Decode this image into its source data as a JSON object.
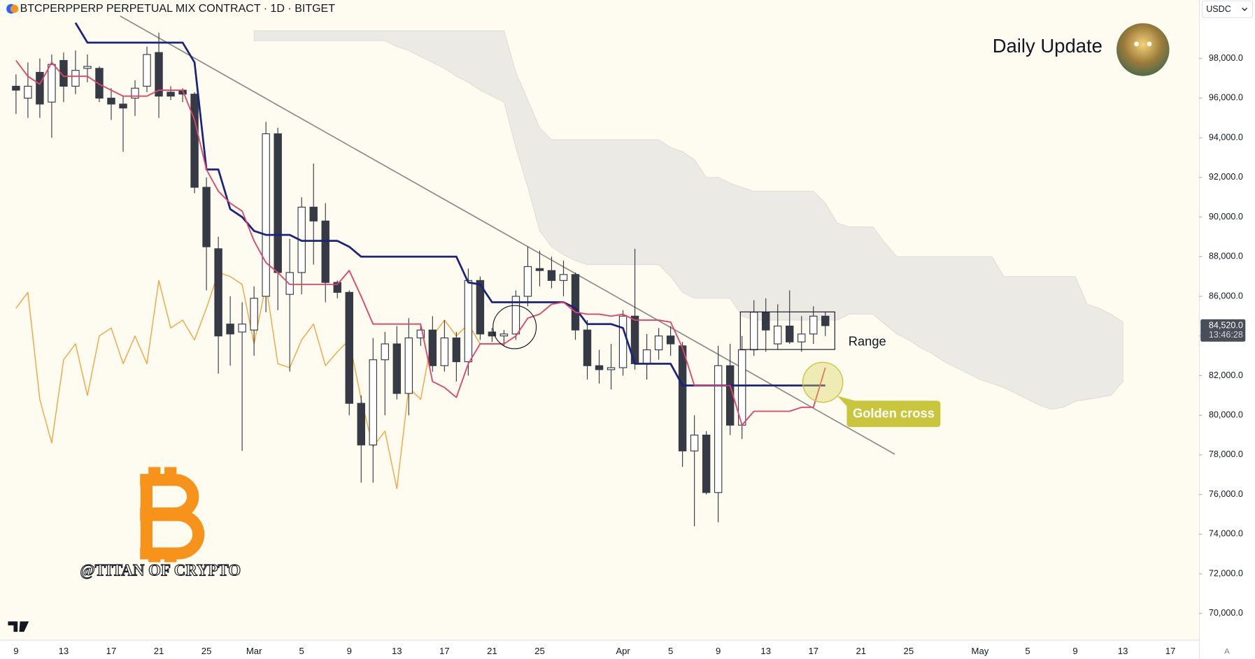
{
  "chart_data": {
    "type": "candlestick",
    "title": "BTCPERPPERP PERPETUAL MIX CONTRACT · 1D · BITGET",
    "currency": "USDC",
    "auto_button": "A",
    "annotations": {
      "daily_update": "Daily Update",
      "range": "Range",
      "golden_cross": "Golden cross",
      "watermark": "@TITAN OF CRYPTO"
    },
    "last_price": {
      "value": 84520,
      "label": "84,520.0",
      "countdown": "13:46:28"
    },
    "up_color": "#ffffff",
    "down_color": "#363a45",
    "ylim": [
      68670,
      100950
    ],
    "yticks": [
      {
        "value": 70000,
        "label": "70,000.0"
      },
      {
        "value": 72000,
        "label": "72,000.0"
      },
      {
        "value": 74000,
        "label": "74,000.0"
      },
      {
        "value": 76000,
        "label": "76,000.0"
      },
      {
        "value": 78000,
        "label": "78,000.0"
      },
      {
        "value": 80000,
        "label": "80,000.0"
      },
      {
        "value": 82000,
        "label": "82,000.0"
      },
      {
        "value": 84000,
        "label": "84,000.0"
      },
      {
        "value": 86000,
        "label": "86,000.0"
      },
      {
        "value": 88000,
        "label": "88,000.0"
      },
      {
        "value": 90000,
        "label": "90,000.0"
      },
      {
        "value": 92000,
        "label": "92,000.0"
      },
      {
        "value": 94000,
        "label": "94,000.0"
      },
      {
        "value": 96000,
        "label": "96,000.0"
      },
      {
        "value": 98000,
        "label": "98,000.0"
      }
    ],
    "categories": [
      "9",
      null,
      null,
      null,
      "13",
      null,
      null,
      null,
      "17",
      null,
      null,
      null,
      "21",
      null,
      null,
      null,
      "25",
      null,
      null,
      null,
      "Mar",
      null,
      null,
      null,
      "5",
      null,
      null,
      null,
      "9",
      null,
      null,
      null,
      "13",
      null,
      null,
      null,
      "17",
      null,
      null,
      null,
      "21",
      null,
      null,
      null,
      "25",
      null,
      null,
      null,
      null,
      null,
      null,
      "Apr",
      null,
      null,
      null,
      "5",
      null,
      null,
      null,
      "9",
      null,
      null,
      null,
      "13",
      null,
      null,
      null,
      "17",
      null,
      null,
      null,
      "21",
      null,
      null,
      null,
      "25",
      null,
      null,
      null,
      null,
      null,
      "May",
      null,
      null,
      null,
      "5",
      null,
      null,
      null,
      "9",
      null,
      null,
      null,
      "13",
      null,
      null,
      null,
      "17",
      null,
      null
    ],
    "open": [
      96600,
      96000,
      97300,
      95800,
      97900,
      96600,
      97500,
      97500,
      96000,
      95700,
      96000,
      96600,
      98300,
      96300,
      96400,
      96200,
      91500,
      88400,
      84600,
      84200,
      84300,
      86000,
      94200,
      86100,
      87200,
      90500,
      89800,
      86700,
      86200,
      80600,
      78500,
      82800,
      83600,
      81100,
      83900,
      84300,
      82500,
      83900,
      82700,
      86800,
      84200,
      84000,
      84100,
      86000,
      87400,
      87300,
      86800,
      87100,
      84300,
      82500,
      82300,
      82400,
      85000,
      82600,
      83300,
      84000,
      83500,
      78200,
      79000,
      76100,
      82500,
      79500,
      83300,
      85200,
      83600,
      84500,
      83700,
      84100,
      85000,
      null,
      null,
      null,
      null,
      null,
      null,
      null,
      null,
      null,
      null,
      null,
      null,
      null,
      null,
      null,
      null,
      null,
      null,
      null,
      null,
      null,
      null,
      null,
      null,
      null,
      null,
      null,
      null,
      null,
      null,
      null
    ],
    "high": [
      97200,
      97800,
      98000,
      98200,
      98300,
      98400,
      98200,
      97600,
      96500,
      96100,
      96900,
      98600,
      99300,
      96600,
      96500,
      96300,
      92000,
      89000,
      86000,
      85700,
      86500,
      94800,
      94500,
      88900,
      91000,
      92700,
      90700,
      86800,
      86300,
      81000,
      83900,
      84200,
      84500,
      84900,
      84600,
      85000,
      84800,
      84200,
      87400,
      87000,
      84400,
      84300,
      86300,
      88500,
      88300,
      88000,
      87800,
      87200,
      84800,
      83300,
      83600,
      85300,
      88400,
      84100,
      84400,
      84500,
      83700,
      80000,
      79200,
      83500,
      83600,
      84000,
      85800,
      85900,
      85600,
      86300,
      85000,
      85500,
      85200,
      null,
      null,
      null,
      null,
      null,
      null,
      null,
      null,
      null,
      null,
      null,
      null,
      null,
      null,
      null,
      null,
      null,
      null,
      null,
      null,
      null,
      null,
      null,
      null,
      null,
      null,
      null,
      null,
      null,
      null,
      null
    ],
    "low": [
      95200,
      95000,
      95000,
      94000,
      95800,
      96200,
      96800,
      95800,
      94900,
      93300,
      95100,
      96300,
      95000,
      95900,
      95800,
      91200,
      86300,
      82100,
      82500,
      78200,
      83000,
      85200,
      85300,
      82200,
      86100,
      87600,
      85700,
      85900,
      80000,
      76600,
      76600,
      80000,
      80800,
      80000,
      83500,
      82200,
      82200,
      81700,
      82000,
      83800,
      83700,
      83500,
      83800,
      85500,
      86500,
      86400,
      86000,
      83800,
      81800,
      81600,
      81300,
      82000,
      82300,
      81800,
      82800,
      83000,
      77400,
      74400,
      76000,
      74600,
      79000,
      78800,
      83000,
      83200,
      83300,
      83600,
      83200,
      83600,
      84000,
      null,
      null,
      null,
      null,
      null,
      null,
      null,
      null,
      null,
      null,
      null,
      null,
      null,
      null,
      null,
      null,
      null,
      null,
      null,
      null,
      null,
      null,
      null,
      null,
      null,
      null,
      null,
      null,
      null,
      null,
      null
    ],
    "close": [
      96400,
      96600,
      95700,
      97700,
      96600,
      97400,
      97600,
      96000,
      95700,
      95500,
      96500,
      98200,
      96100,
      96100,
      96200,
      91500,
      88500,
      84000,
      84100,
      84600,
      85900,
      94200,
      87200,
      87200,
      90500,
      89800,
      86700,
      86200,
      80600,
      78500,
      82800,
      83600,
      81100,
      83900,
      84300,
      82500,
      83900,
      82700,
      86800,
      84100,
      84000,
      84100,
      86000,
      87500,
      87300,
      86800,
      87100,
      84300,
      82500,
      82300,
      82400,
      85000,
      82600,
      83300,
      84000,
      83600,
      78200,
      79000,
      76100,
      82500,
      79500,
      83300,
      85200,
      84300,
      84500,
      83700,
      84100,
      85000,
      84520,
      null,
      null,
      null,
      null,
      null,
      null,
      null,
      null,
      null,
      null,
      null,
      null,
      null,
      null,
      null,
      null,
      null,
      null,
      null,
      null,
      null,
      null,
      null,
      null,
      null,
      null,
      null,
      null,
      null,
      null,
      null
    ],
    "series": [
      {
        "color": "#f2a43a",
        "values": [
          85400,
          86200,
          80800,
          78600,
          82800,
          83600,
          81000,
          84000,
          84400,
          82600,
          84000,
          82600,
          86800,
          84400,
          84800,
          83800,
          85400,
          87200,
          87000,
          86600,
          83600,
          86600,
          82600,
          82400,
          83800,
          84600,
          82500,
          83200,
          83800,
          80800,
          78400,
          79200,
          76300,
          81400,
          80800,
          84000,
          84800,
          84000,
          84600,
          83600,
          null,
          null,
          null,
          null,
          null,
          null,
          null,
          null,
          null,
          null,
          null,
          null,
          null,
          null,
          null,
          null,
          null,
          null,
          null,
          null,
          null,
          null,
          null,
          null,
          null,
          null,
          null,
          null,
          null,
          null,
          null,
          null,
          null,
          null,
          null,
          null,
          null,
          null,
          null,
          null,
          null,
          null,
          null,
          null,
          null,
          null,
          null,
          null,
          null,
          null,
          null,
          null,
          null,
          null,
          null,
          null,
          null,
          null,
          null,
          null
        ]
      },
      {
        "color": "#1a237e",
        "values": [
          null,
          null,
          null,
          null,
          null,
          99800,
          98800,
          98800,
          98800,
          98800,
          98800,
          98800,
          98800,
          98800,
          98800,
          97800,
          92400,
          92400,
          90400,
          90000,
          89300,
          89100,
          89100,
          89100,
          88800,
          88800,
          88800,
          88800,
          88500,
          88000,
          88000,
          88000,
          88000,
          88000,
          88000,
          88000,
          88000,
          88000,
          86700,
          86600,
          85700,
          85700,
          85700,
          85700,
          85700,
          85700,
          85700,
          85400,
          84600,
          84600,
          84600,
          84400,
          82600,
          82600,
          82600,
          82600,
          81500,
          81500,
          81500,
          81500,
          81500,
          81500,
          81500,
          81500,
          81500,
          81500,
          81500,
          81500,
          81500,
          null,
          null,
          null,
          null,
          null,
          null,
          null,
          null,
          null,
          null,
          null,
          null,
          null,
          null,
          null,
          null,
          null,
          null,
          null,
          null,
          null,
          null,
          null,
          null,
          null,
          null,
          null,
          null,
          null,
          null,
          null
        ]
      },
      {
        "color": "#e0446a",
        "values": [
          97900,
          97100,
          96700,
          97800,
          97100,
          97100,
          97100,
          96700,
          96400,
          96100,
          96100,
          96100,
          96400,
          96400,
          96400,
          94900,
          92400,
          91300,
          90700,
          90300,
          88800,
          87700,
          87200,
          86600,
          86600,
          86600,
          86600,
          86600,
          87300,
          86000,
          84600,
          84600,
          84600,
          84600,
          84600,
          81700,
          81400,
          80900,
          82600,
          83600,
          83600,
          83600,
          84000,
          84900,
          85100,
          85600,
          85700,
          85200,
          85100,
          85100,
          85000,
          85100,
          84800,
          84800,
          84800,
          84700,
          83400,
          81500,
          81500,
          81500,
          81500,
          79500,
          80200,
          80200,
          80200,
          80200,
          80400,
          80400,
          82400,
          null,
          null,
          null,
          null,
          null,
          null,
          null,
          null,
          null,
          null,
          null,
          null,
          null,
          null,
          null,
          null,
          null,
          null,
          null,
          null,
          null,
          null,
          null,
          null,
          null,
          null,
          null,
          null,
          null,
          null,
          null
        ]
      }
    ],
    "cloud": {
      "color": "#ebeae4",
      "upper": [
        null,
        null,
        null,
        null,
        null,
        null,
        null,
        null,
        null,
        null,
        null,
        null,
        null,
        null,
        null,
        null,
        null,
        null,
        null,
        null,
        99400,
        99400,
        99400,
        99400,
        99400,
        99400,
        99400,
        99400,
        99400,
        99400,
        99400,
        99400,
        99400,
        99400,
        99400,
        99400,
        99400,
        99400,
        99400,
        99400,
        99400,
        99400,
        97300,
        95900,
        94500,
        93900,
        93900,
        93900,
        93900,
        93900,
        93900,
        93900,
        93900,
        93900,
        93900,
        93500,
        93300,
        92900,
        92000,
        92000,
        91700,
        91500,
        91300,
        91300,
        91300,
        91300,
        91300,
        91300,
        90700,
        89700,
        89500,
        89500,
        89500,
        88700,
        88000,
        88000,
        88000,
        88000,
        88000,
        88000,
        88000,
        88000,
        88000,
        87000,
        87000,
        87000,
        87000,
        87000,
        87000,
        87000,
        85600,
        85400,
        85100,
        84700,
        null,
        null,
        null,
        null,
        null,
        null
      ],
      "lower": [
        null,
        null,
        null,
        null,
        null,
        null,
        null,
        null,
        null,
        null,
        null,
        null,
        null,
        null,
        null,
        null,
        null,
        null,
        null,
        null,
        98900,
        98900,
        98900,
        98900,
        98900,
        98900,
        98900,
        98900,
        98900,
        98900,
        98900,
        98900,
        98600,
        98400,
        98100,
        97800,
        97500,
        97100,
        96800,
        96400,
        96100,
        95800,
        93500,
        91500,
        89300,
        88500,
        88100,
        87800,
        87600,
        87600,
        87600,
        87600,
        87600,
        87600,
        87600,
        87000,
        86200,
        85900,
        85900,
        85900,
        85900,
        85000,
        84800,
        84800,
        84800,
        84800,
        84800,
        84800,
        84800,
        84800,
        85100,
        85100,
        85100,
        84600,
        84100,
        83800,
        83400,
        83100,
        82700,
        82400,
        82100,
        81800,
        81600,
        81400,
        81100,
        80800,
        80500,
        80300,
        80400,
        80700,
        80800,
        80900,
        81000,
        81700,
        null,
        null,
        null,
        null,
        null,
        null
      ]
    }
  }
}
